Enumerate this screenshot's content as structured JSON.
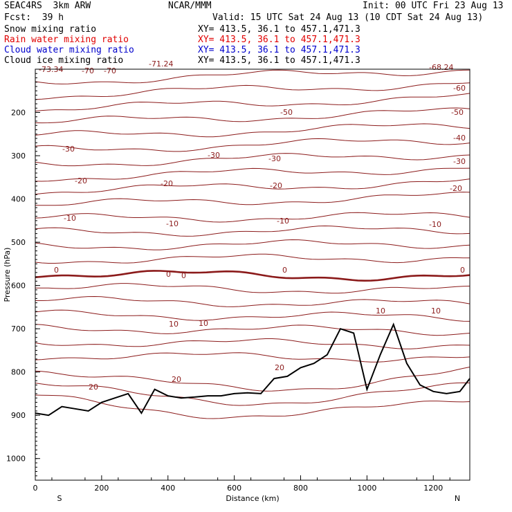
{
  "header": {
    "model": "SEAC4RS  3km ARW",
    "center": "NCAR/MMM",
    "init": "Init: 00 UTC Fri 23 Aug 13",
    "fcst": "Fcst:  39 h",
    "valid": "Valid: 15 UTC Sat 24 Aug 13 (10 CDT Sat 24 Aug 13)"
  },
  "fields": [
    {
      "name": "Snow mixing ratio",
      "xy": "XY= 413.5, 36.1 to 457.1,471.3",
      "color": "#000000"
    },
    {
      "name": "Rain water mixing ratio",
      "xy": "XY= 413.5, 36.1 to 457.1,471.3",
      "color": "#e00000"
    },
    {
      "name": "Cloud water mixing ratio",
      "xy": "XY= 413.5, 36.1 to 457.1,471.3",
      "color": "#0000cc"
    },
    {
      "name": "Cloud ice mixing ratio",
      "xy": "XY= 413.5, 36.1 to 457.1,471.3",
      "color": "#000000"
    }
  ],
  "colors": {
    "isotherm": "#8b1a1a",
    "zero_line": "#7a0000",
    "terrain": "#000000"
  },
  "chart_data": {
    "type": "line",
    "xlabel": "Distance (km)",
    "ylabel": "Pressure (hPa)",
    "xlim": [
      0,
      1310
    ],
    "ylim": [
      1050,
      100
    ],
    "x_ticks": [
      "0",
      "200",
      "400",
      "600",
      "800",
      "1000",
      "1200"
    ],
    "y_ticks": [
      "200",
      "300",
      "400",
      "500",
      "600",
      "700",
      "800",
      "900",
      "1000"
    ],
    "end_labels": {
      "left": "S",
      "right": "N"
    },
    "contour_labels": [
      "-73.34",
      "-70",
      "-71.24",
      "-70",
      "-68.24",
      "-60",
      "-50",
      "-50",
      "-40",
      "-30",
      "-30",
      "-30",
      "-30",
      "-20",
      "-20",
      "-20",
      "-20",
      "-10",
      "-10",
      "-10",
      "-10",
      "0",
      "0",
      "0",
      "0",
      "0",
      "10",
      "10",
      "10",
      "10",
      "20",
      "20",
      "20"
    ],
    "isotherms_C": [
      -70,
      -60,
      -50,
      -40,
      -30,
      -20,
      -10,
      0,
      10,
      20
    ],
    "series": [
      {
        "x": [
          0,
          40,
          80,
          120,
          160,
          200,
          240,
          280,
          320,
          360,
          400,
          440,
          480,
          520,
          560,
          600,
          640,
          680,
          720,
          760,
          800,
          840,
          880,
          920,
          960,
          1000,
          1040,
          1080,
          1120,
          1160,
          1200,
          1240,
          1280,
          1310
        ],
        "y": [
          895,
          900,
          880,
          885,
          890,
          870,
          860,
          850,
          895,
          840,
          855,
          860,
          858,
          855,
          855,
          850,
          848,
          850,
          815,
          810,
          790,
          780,
          760,
          700,
          710,
          840,
          760,
          690,
          780,
          830,
          845,
          850,
          845,
          815
        ]
      }
    ]
  }
}
